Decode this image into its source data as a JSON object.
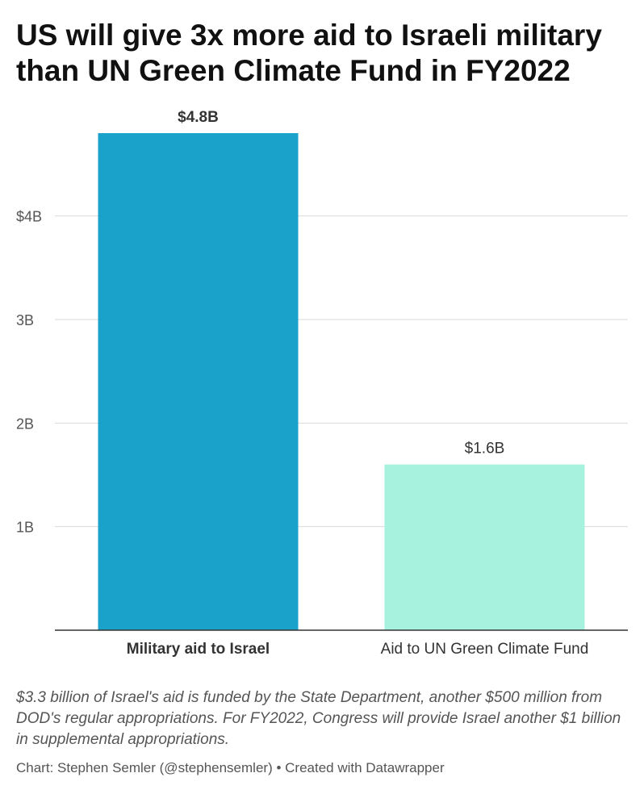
{
  "chart_data": {
    "type": "bar",
    "title": "US will give 3x more aid to Israeli military than UN Green Climate Fund in FY2022",
    "categories": [
      "Military aid to Israel",
      "Aid to UN Green Climate Fund"
    ],
    "values": [
      4.8,
      1.6
    ],
    "value_labels": [
      "$4.8B",
      "$1.6B"
    ],
    "bar_colors": [
      "#1ba2cb",
      "#a6f2df"
    ],
    "category_bold": [
      true,
      false
    ],
    "value_label_bold": [
      true,
      false
    ],
    "yticks": [
      1,
      2,
      3,
      4
    ],
    "ytick_labels": [
      "1B",
      "2B",
      "3B",
      "$4B"
    ],
    "ylim": [
      0,
      4.8
    ],
    "grid": true,
    "xlabel": "",
    "ylabel": ""
  },
  "notes": {
    "text": "$3.3 billion of Israel's aid is funded by the State Department, another $500 million from DOD's regular appropriations. For FY2022, Congress will provide Israel another $1 billion in supplemental appropriations.",
    "source": "Chart: Stephen Semler (@stephensemler) • Created with Datawrapper"
  }
}
